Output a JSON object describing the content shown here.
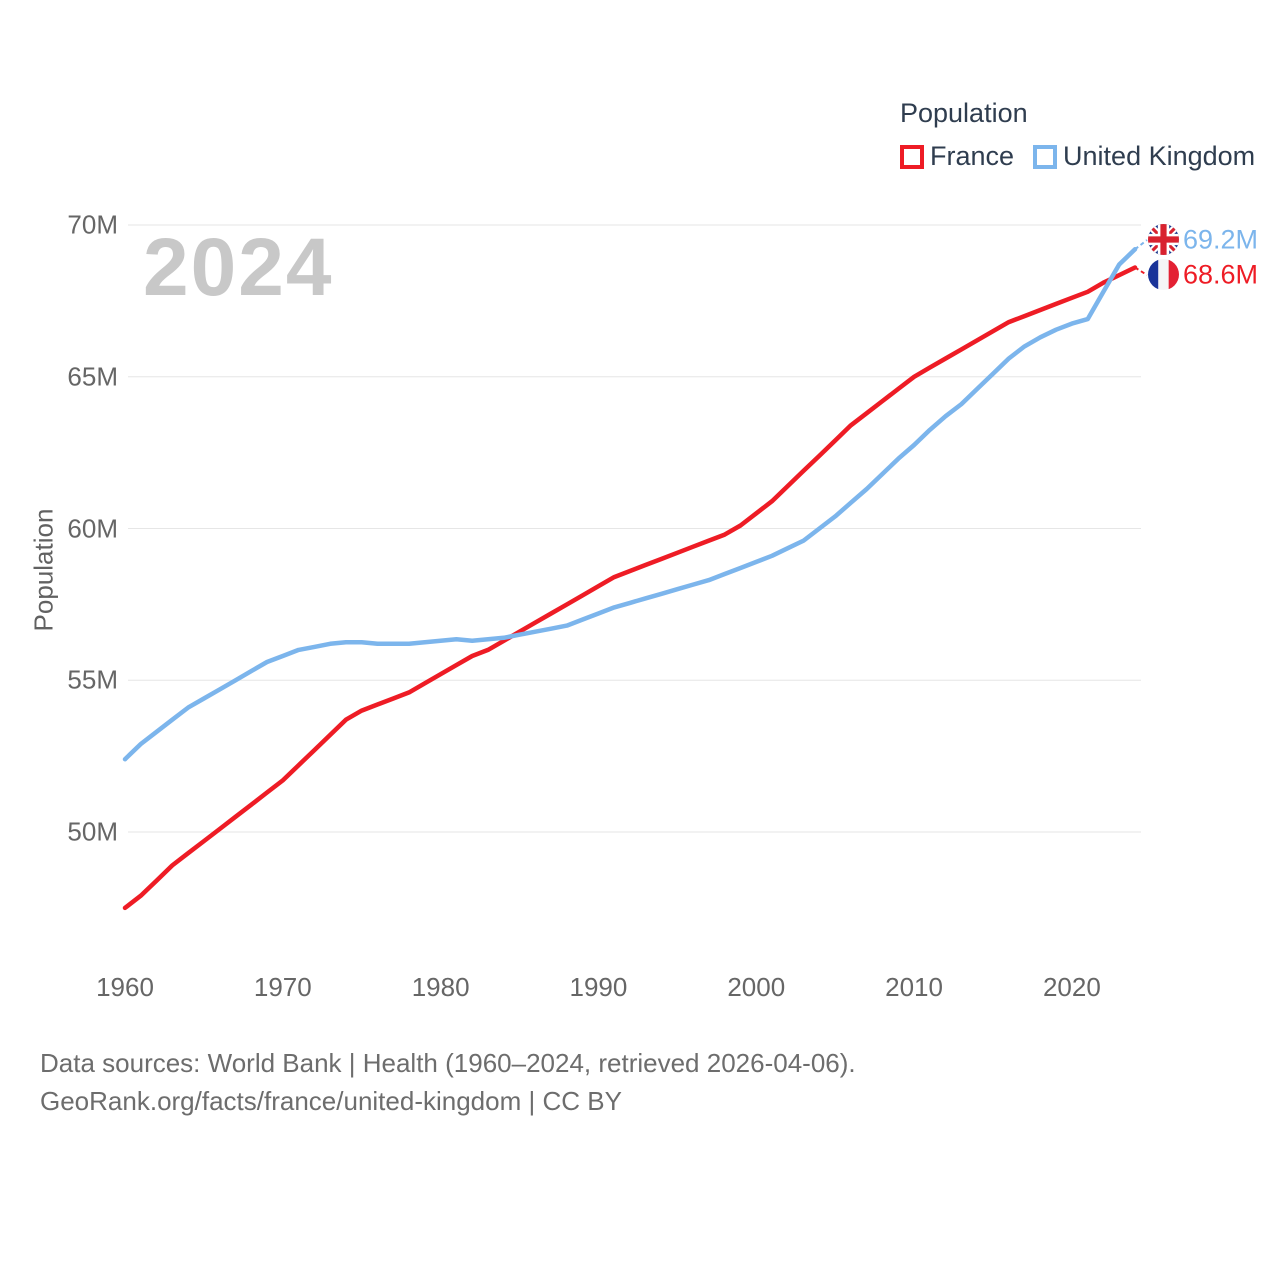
{
  "legend": {
    "title": "Population",
    "items": [
      {
        "label": "France",
        "color": "#ee1c25"
      },
      {
        "label": "United Kingdom",
        "color": "#7cb5ec"
      }
    ]
  },
  "watermark": "2024",
  "axes": {
    "y_title": "Population",
    "y_ticks": [
      {
        "label": "70M",
        "value": 70
      },
      {
        "label": "65M",
        "value": 65
      },
      {
        "label": "60M",
        "value": 60
      },
      {
        "label": "55M",
        "value": 55
      },
      {
        "label": "50M",
        "value": 50
      }
    ],
    "x_ticks": [
      {
        "label": "1960",
        "value": 1960
      },
      {
        "label": "1970",
        "value": 1970
      },
      {
        "label": "1980",
        "value": 1980
      },
      {
        "label": "1990",
        "value": 1990
      },
      {
        "label": "2000",
        "value": 2000
      },
      {
        "label": "2010",
        "value": 2010
      },
      {
        "label": "2020",
        "value": 2020
      }
    ]
  },
  "chart_data": {
    "type": "line",
    "title": "Population",
    "xlabel": "",
    "ylabel": "Population",
    "x_range": [
      1960,
      2024
    ],
    "ylim": [
      47,
      70.5
    ],
    "grid": true,
    "legend_position": "top-right",
    "x": [
      1960,
      1961,
      1962,
      1963,
      1964,
      1965,
      1966,
      1967,
      1968,
      1969,
      1970,
      1971,
      1972,
      1973,
      1974,
      1975,
      1976,
      1977,
      1978,
      1979,
      1980,
      1981,
      1982,
      1983,
      1984,
      1985,
      1986,
      1987,
      1988,
      1989,
      1990,
      1991,
      1992,
      1993,
      1994,
      1995,
      1996,
      1997,
      1998,
      1999,
      2000,
      2001,
      2002,
      2003,
      2004,
      2005,
      2006,
      2007,
      2008,
      2009,
      2010,
      2011,
      2012,
      2013,
      2014,
      2015,
      2016,
      2017,
      2018,
      2019,
      2020,
      2021,
      2022,
      2023,
      2024
    ],
    "series": [
      {
        "name": "France",
        "color": "#ee1c25",
        "values": [
          47.5,
          47.9,
          48.4,
          48.9,
          49.3,
          49.7,
          50.1,
          50.5,
          50.9,
          51.3,
          51.7,
          52.2,
          52.7,
          53.2,
          53.7,
          54.0,
          54.2,
          54.4,
          54.6,
          54.9,
          55.2,
          55.5,
          55.8,
          56.0,
          56.3,
          56.6,
          56.9,
          57.2,
          57.5,
          57.8,
          58.1,
          58.4,
          58.6,
          58.8,
          59.0,
          59.2,
          59.4,
          59.6,
          59.8,
          60.1,
          60.5,
          60.9,
          61.4,
          61.9,
          62.4,
          62.9,
          63.4,
          63.8,
          64.2,
          64.6,
          65.0,
          65.3,
          65.6,
          65.9,
          66.2,
          66.5,
          66.8,
          67.0,
          67.2,
          67.4,
          67.6,
          67.8,
          68.1,
          68.35,
          68.6
        ]
      },
      {
        "name": "United Kingdom",
        "color": "#7cb5ec",
        "values": [
          52.4,
          52.9,
          53.3,
          53.7,
          54.1,
          54.4,
          54.7,
          55.0,
          55.3,
          55.6,
          55.8,
          56.0,
          56.1,
          56.2,
          56.25,
          56.25,
          56.2,
          56.2,
          56.2,
          56.25,
          56.3,
          56.35,
          56.3,
          56.35,
          56.4,
          56.5,
          56.6,
          56.7,
          56.8,
          57.0,
          57.2,
          57.4,
          57.55,
          57.7,
          57.85,
          58.0,
          58.15,
          58.3,
          58.5,
          58.7,
          58.9,
          59.1,
          59.35,
          59.6,
          60.0,
          60.4,
          60.85,
          61.3,
          61.8,
          62.3,
          62.75,
          63.25,
          63.7,
          64.1,
          64.6,
          65.1,
          65.6,
          66.0,
          66.3,
          66.55,
          66.75,
          66.9,
          67.8,
          68.7,
          69.2
        ]
      }
    ],
    "end_labels": [
      {
        "series": "United Kingdom",
        "text": "69.2M",
        "value": 69.2
      },
      {
        "series": "France",
        "text": "68.6M",
        "value": 68.6
      }
    ]
  },
  "footer": {
    "line1": "Data sources: World Bank | Health (1960–2024, retrieved 2026-04-06).",
    "line2": "GeoRank.org/facts/france/united-kingdom | CC BY"
  }
}
